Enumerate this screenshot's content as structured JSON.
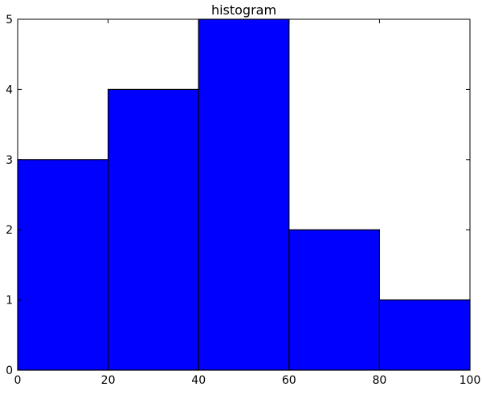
{
  "chart_data": {
    "type": "bar",
    "title": "histogram",
    "xlabel": "",
    "ylabel": "",
    "bin_edges": [
      0,
      20,
      40,
      60,
      80,
      100
    ],
    "values": [
      3,
      4,
      5,
      2,
      1
    ],
    "xlim": [
      0,
      100
    ],
    "ylim": [
      0,
      5
    ],
    "xticks": [
      "0",
      "20",
      "40",
      "60",
      "80",
      "100"
    ],
    "yticks": [
      "0",
      "1",
      "2",
      "3",
      "4",
      "5"
    ],
    "grid": false,
    "bar_color": "#0000ff",
    "edge_color": "#000000"
  }
}
